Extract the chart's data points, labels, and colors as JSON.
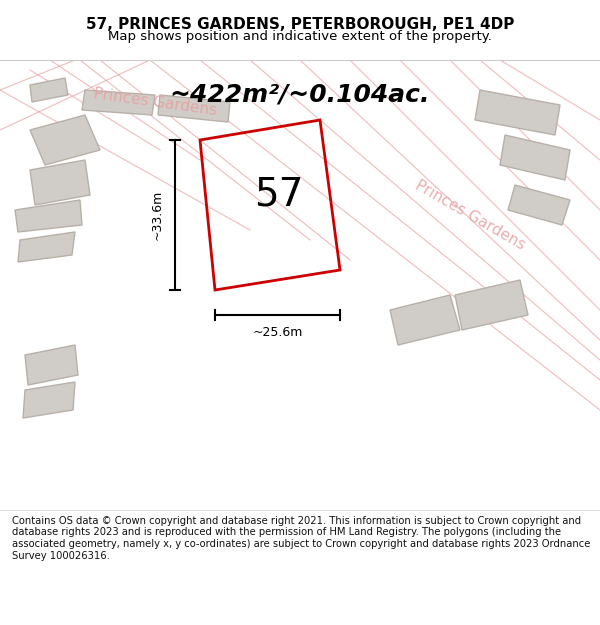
{
  "title_line1": "57, PRINCES GARDENS, PETERBOROUGH, PE1 4DP",
  "title_line2": "Map shows position and indicative extent of the property.",
  "area_label": "~422m²/~0.104ac.",
  "property_number": "57",
  "dim_width": "~25.6m",
  "dim_height": "~33.6m",
  "street_label1": "Princes Gardens",
  "street_label2": "Princes Gardens",
  "footer_text": "Contains OS data © Crown copyright and database right 2021. This information is subject to Crown copyright and database rights 2023 and is reproduced with the permission of HM Land Registry. The polygons (including the associated geometry, namely x, y co-ordinates) are subject to Crown copyright and database rights 2023 Ordnance Survey 100026316.",
  "bg_color": "#f0ede8",
  "map_bg": "#f5f2ee",
  "header_bg": "#ffffff",
  "footer_bg": "#ffffff",
  "property_color": "#cc0000",
  "building_fill": "#d0ccc8",
  "building_edge": "#b8b0a8",
  "pink_line_color": "#e8a0a0",
  "title_fontsize": 11,
  "subtitle_fontsize": 9.5,
  "area_fontsize": 18,
  "number_fontsize": 28,
  "footer_fontsize": 7.2,
  "street_fontsize": 11
}
